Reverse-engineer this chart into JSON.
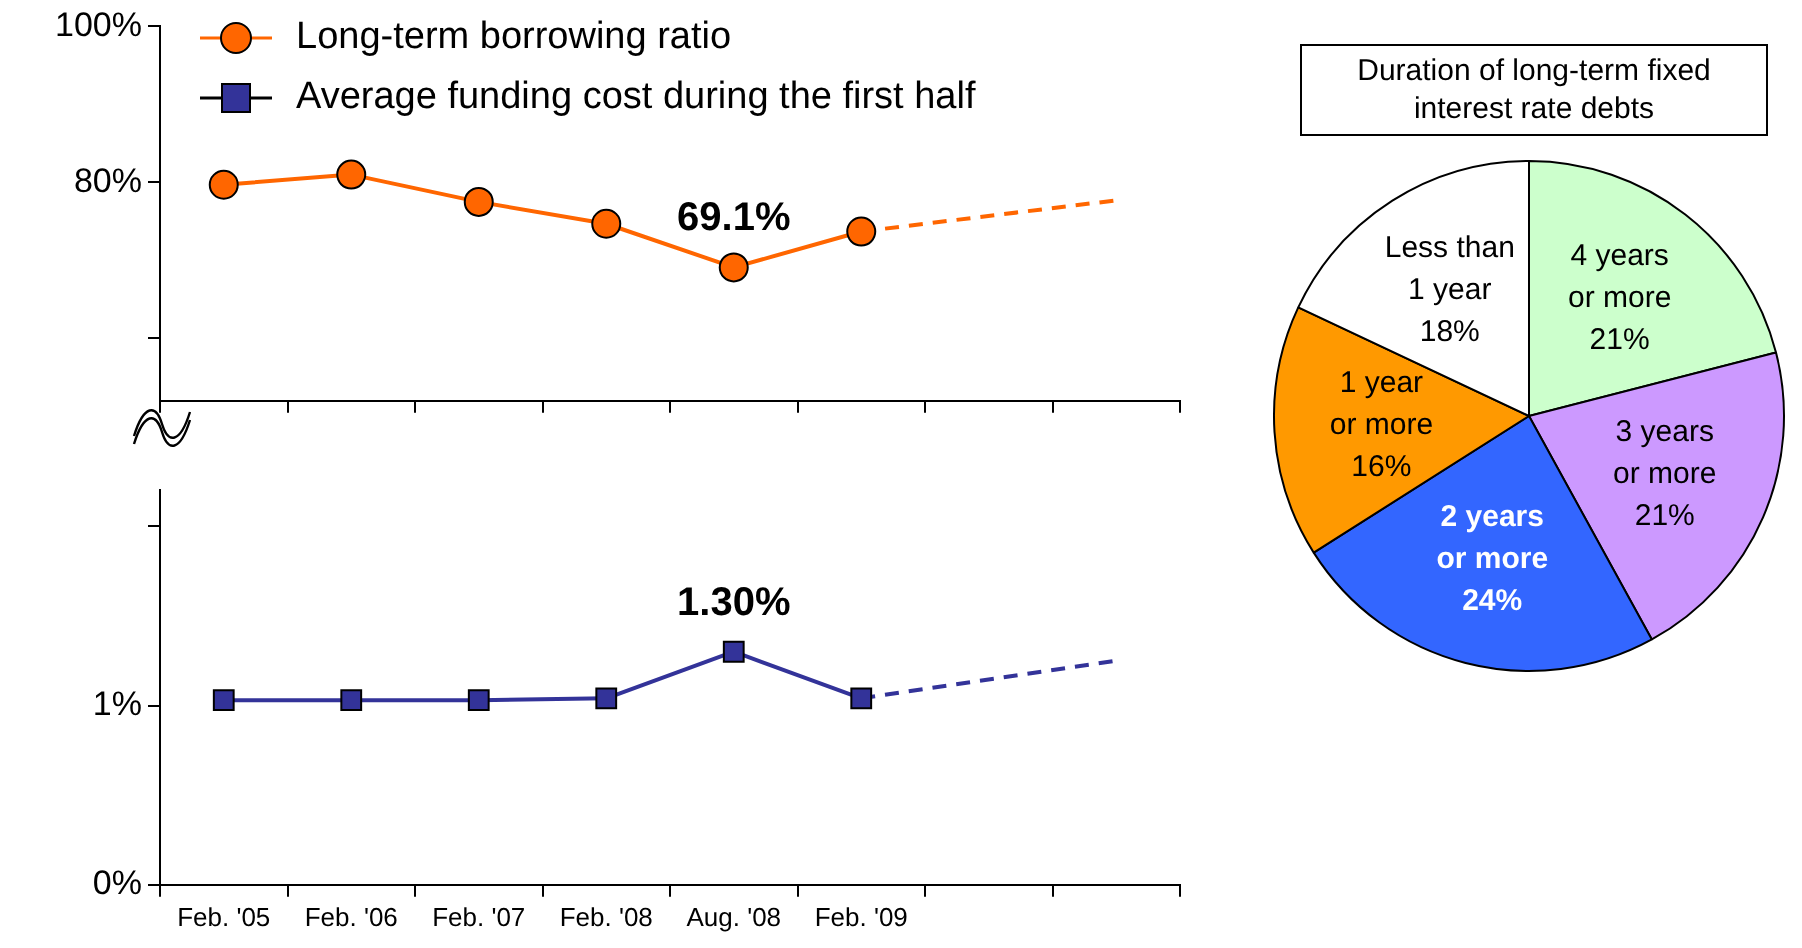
{
  "chart_data": [
    {
      "type": "line",
      "categories": [
        null,
        null,
        null,
        null,
        null,
        null,
        null,
        null
      ],
      "ylim": [
        52,
        100
      ],
      "yticks": [
        {
          "value": 60,
          "label": null
        },
        {
          "value": 80,
          "label": "80%"
        },
        {
          "value": 100,
          "label": "100%"
        }
      ],
      "legend": "top left",
      "series": [
        {
          "name": "Long-term borrowing ratio",
          "color": "#ff6600",
          "marker": "circle",
          "values": [
            79.7,
            81,
            77.5,
            74.7,
            69.1,
            73.7,
            null,
            null
          ],
          "value_labels": [
            null,
            null,
            null,
            null,
            "69.1%",
            null,
            null,
            null
          ]
        },
        {
          "color": "#ff6600",
          "marker": "none",
          "line_style": "dashed",
          "values": [
            null,
            null,
            null,
            null,
            null,
            73.7,
            null,
            77.7
          ]
        }
      ]
    },
    {
      "type": "line",
      "categories": [
        "Feb. '05",
        "Feb. '06",
        "Feb. '07",
        "Feb. '08",
        "Aug. '08",
        "Feb. '09",
        null,
        null
      ],
      "ylim": [
        0,
        2.2
      ],
      "legend": "top left",
      "yticks": [
        {
          "value": 0,
          "label": "0%"
        },
        {
          "value": 1,
          "label": "1%"
        },
        {
          "value": 2,
          "label": null
        }
      ],
      "series": [
        {
          "name": "Average funding cost during the first half",
          "color": "#333399",
          "marker": "square",
          "values": [
            1.03,
            1.03,
            1.03,
            1.04,
            1.3,
            1.04,
            null,
            null
          ],
          "value_labels": [
            null,
            null,
            null,
            null,
            "1.30%",
            null,
            null,
            null
          ]
        },
        {
          "color": "#333399",
          "marker": "none",
          "line_style": "dashed",
          "values": [
            null,
            null,
            null,
            null,
            null,
            1.04,
            null,
            1.25
          ]
        }
      ]
    },
    {
      "type": "pie",
      "title": "Duration of long-term fixed interest rate debts",
      "categories": [
        "4 years or more",
        "3 years or more",
        "2 years or more",
        "1 year or more",
        "Less than 1 year"
      ],
      "values": [
        21,
        21,
        24,
        16,
        18
      ],
      "colors": [
        "#ccffcc",
        "#cc99ff",
        "#3366ff",
        "#ff9900",
        "#ffffff"
      ],
      "value_labels": [
        "21%",
        "21%",
        "24%",
        "16%",
        "18%"
      ]
    }
  ]
}
